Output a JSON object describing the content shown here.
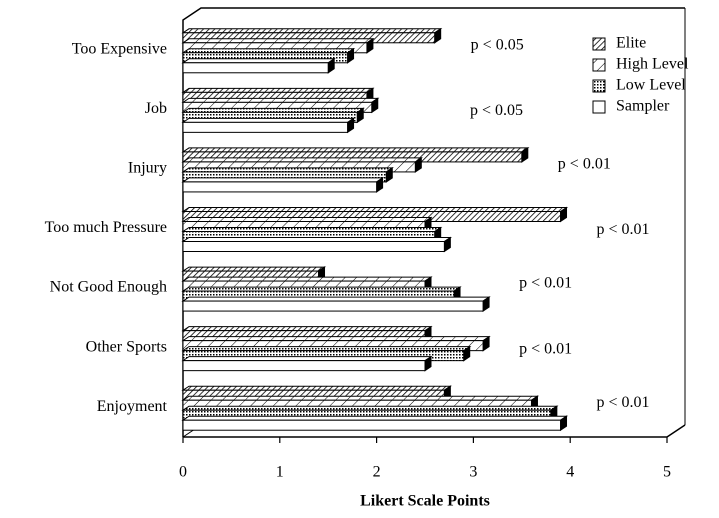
{
  "chart_data": {
    "type": "bar",
    "orientation": "horizontal",
    "x_label": "Likert Scale Points",
    "categories": [
      "Too Expensive",
      "Job",
      "Injury",
      "Too much Pressure",
      "Not Good Enough",
      "Other Sports",
      "Enjoyment"
    ],
    "series": [
      {
        "name": "Elite",
        "color": "#000000",
        "pattern": "dense-diagonal",
        "values": [
          2.6,
          1.9,
          3.5,
          3.9,
          1.4,
          2.5,
          2.7
        ]
      },
      {
        "name": "High Level",
        "color": "#000000",
        "pattern": "diagonal",
        "values": [
          1.9,
          1.95,
          2.4,
          2.5,
          2.5,
          3.1,
          3.6
        ]
      },
      {
        "name": "Low Level",
        "color": "#000000",
        "pattern": "dots",
        "values": [
          1.7,
          1.8,
          2.1,
          2.6,
          2.8,
          2.9,
          3.8
        ]
      },
      {
        "name": "Sampler",
        "color": "#000000",
        "pattern": "none",
        "values": [
          1.5,
          1.7,
          2.0,
          2.7,
          3.1,
          2.5,
          3.9
        ]
      }
    ],
    "annotations": [
      "p < 0.05",
      "p < 0.05",
      "p < 0.01",
      "p < 0.01",
      "p < 0.01",
      "p < 0.01",
      "p < 0.01"
    ],
    "xlim": [
      0,
      5
    ],
    "xticks": [
      0,
      1,
      2,
      3,
      4,
      5
    ],
    "legend": "top-right"
  }
}
